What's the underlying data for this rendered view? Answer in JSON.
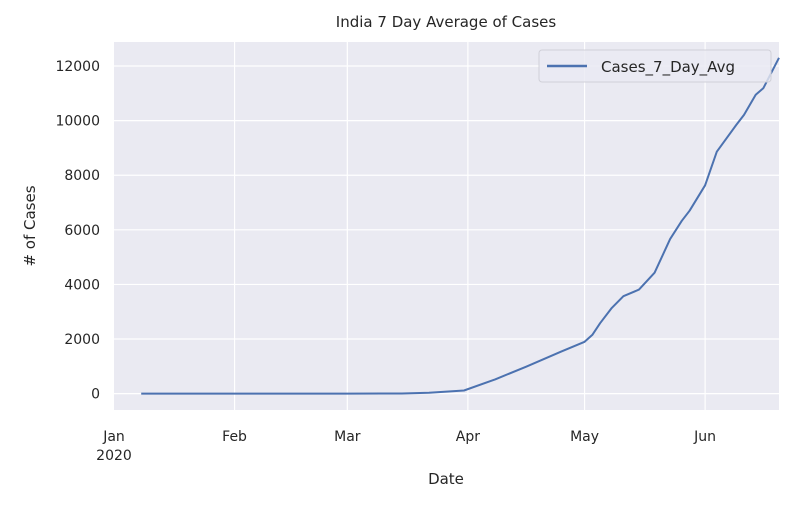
{
  "chart_data": {
    "type": "line",
    "title": "India 7 Day Average of Cases",
    "xlabel": "Date",
    "ylabel": "# of Cases",
    "xlim": [
      "2020-01-01",
      "2020-06-20"
    ],
    "ylim": [
      -600,
      12880
    ],
    "grid": true,
    "legend_position": "top-right",
    "x_ticks": [
      {
        "date": "2020-01-01",
        "label": "Jan",
        "sublabel": "2020"
      },
      {
        "date": "2020-02-01",
        "label": "Feb"
      },
      {
        "date": "2020-03-01",
        "label": "Mar"
      },
      {
        "date": "2020-04-01",
        "label": "Apr"
      },
      {
        "date": "2020-05-01",
        "label": "May"
      },
      {
        "date": "2020-06-01",
        "label": "Jun"
      }
    ],
    "y_ticks": [
      0,
      2000,
      4000,
      6000,
      8000,
      10000,
      12000
    ],
    "series": [
      {
        "name": "Cases_7_Day_Avg",
        "color": "#4c72b0",
        "points": [
          [
            "2020-01-08",
            0
          ],
          [
            "2020-02-01",
            0
          ],
          [
            "2020-03-01",
            0
          ],
          [
            "2020-03-15",
            5
          ],
          [
            "2020-03-22",
            30
          ],
          [
            "2020-03-31",
            115
          ],
          [
            "2020-04-08",
            520
          ],
          [
            "2020-04-16",
            985
          ],
          [
            "2020-04-25",
            1540
          ],
          [
            "2020-05-01",
            1900
          ],
          [
            "2020-05-03",
            2150
          ],
          [
            "2020-05-05",
            2580
          ],
          [
            "2020-05-08",
            3140
          ],
          [
            "2020-05-11",
            3570
          ],
          [
            "2020-05-15",
            3810
          ],
          [
            "2020-05-19",
            4430
          ],
          [
            "2020-05-23",
            5660
          ],
          [
            "2020-05-26",
            6330
          ],
          [
            "2020-05-28",
            6700
          ],
          [
            "2020-06-01",
            7630
          ],
          [
            "2020-06-04",
            8860
          ],
          [
            "2020-06-09",
            9840
          ],
          [
            "2020-06-11",
            10210
          ],
          [
            "2020-06-14",
            10950
          ],
          [
            "2020-06-16",
            11190
          ],
          [
            "2020-06-20",
            12300
          ]
        ]
      }
    ]
  }
}
